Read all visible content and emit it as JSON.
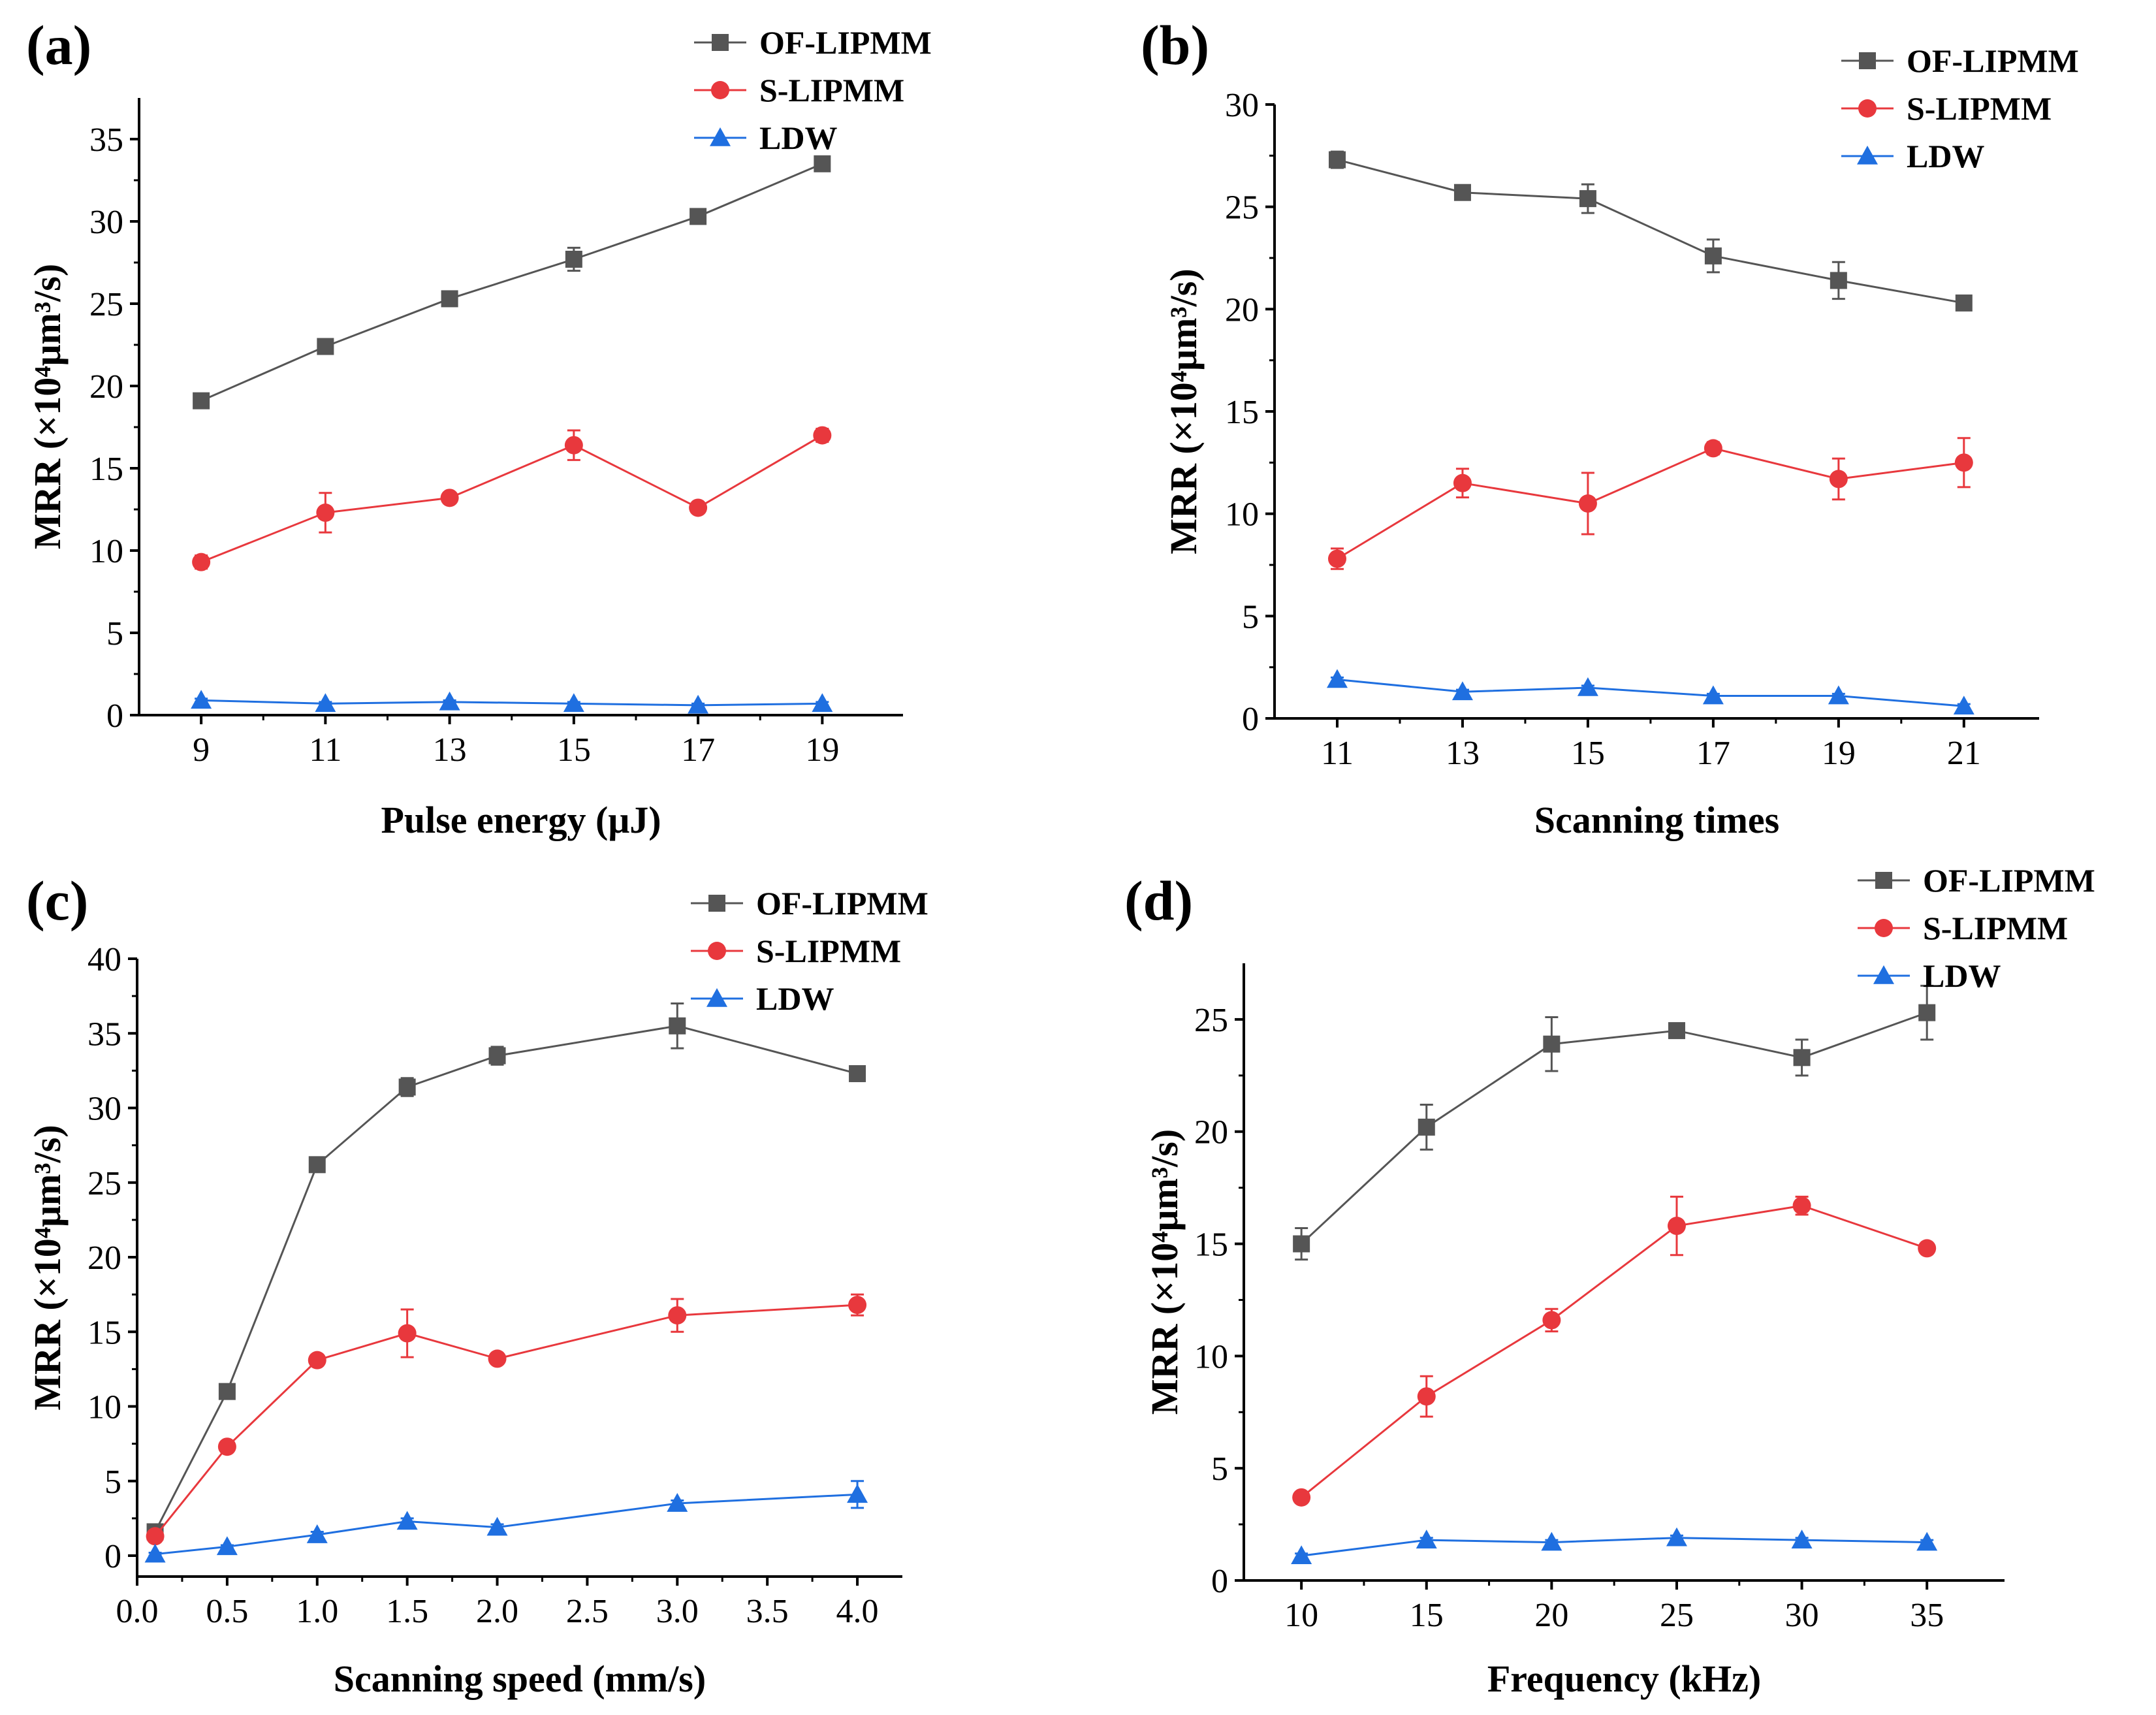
{
  "chart_data": [
    {
      "type": "line",
      "panel_label": "(a)",
      "xlabel": "Pulse energy (μJ)",
      "ylabel": "MRR (×10⁴μm³/s)",
      "x": [
        9,
        11,
        13,
        15,
        17,
        19
      ],
      "xticks": [
        9,
        11,
        13,
        15,
        17,
        19
      ],
      "xlim": [
        8,
        20.3
      ],
      "yticks": [
        0,
        5,
        10,
        15,
        20,
        25,
        30,
        35
      ],
      "ylim": [
        0,
        37.5
      ],
      "legend_position": "top-right",
      "series": [
        {
          "name": "OF-LIPMM",
          "color": "#555555",
          "marker": "square",
          "values": [
            19.1,
            22.4,
            25.3,
            27.7,
            30.3,
            33.5
          ],
          "errors": [
            0.3,
            0.3,
            0.3,
            0.7,
            0.4,
            0.4
          ]
        },
        {
          "name": "S-LIPMM",
          "color": "#e8383d",
          "marker": "circle",
          "values": [
            9.3,
            12.3,
            13.2,
            16.4,
            12.6,
            17.0
          ],
          "errors": [
            0.4,
            1.2,
            0.3,
            0.9,
            0.3,
            0.4
          ]
        },
        {
          "name": "LDW",
          "color": "#1f6fe0",
          "marker": "triangle",
          "values": [
            0.9,
            0.7,
            0.8,
            0.7,
            0.6,
            0.7
          ],
          "errors": [
            0.1,
            0.1,
            0.1,
            0.1,
            0.1,
            0.1
          ]
        }
      ]
    },
    {
      "type": "line",
      "panel_label": "(b)",
      "xlabel": "Scanning times",
      "ylabel": "MRR (×10⁴μm³/s)",
      "x": [
        11,
        13,
        15,
        17,
        19,
        21
      ],
      "xticks": [
        11,
        13,
        15,
        17,
        19,
        21
      ],
      "xlim": [
        10,
        22.2
      ],
      "yticks": [
        0,
        5,
        10,
        15,
        20,
        25,
        30
      ],
      "ylim": [
        0,
        30
      ],
      "legend_position": "top-right",
      "series": [
        {
          "name": "OF-LIPMM",
          "color": "#555555",
          "marker": "square",
          "values": [
            27.3,
            25.7,
            25.4,
            22.6,
            21.4,
            20.3
          ],
          "errors": [
            0.4,
            0.3,
            0.7,
            0.8,
            0.9,
            0.3
          ]
        },
        {
          "name": "S-LIPMM",
          "color": "#e8383d",
          "marker": "circle",
          "values": [
            7.8,
            11.5,
            10.5,
            13.2,
            11.7,
            12.5
          ],
          "errors": [
            0.5,
            0.7,
            1.5,
            0.3,
            1.0,
            1.2
          ]
        },
        {
          "name": "LDW",
          "color": "#1f6fe0",
          "marker": "triangle",
          "values": [
            1.9,
            1.3,
            1.5,
            1.1,
            1.1,
            0.6
          ],
          "errors": [
            0.1,
            0.1,
            0.1,
            0.1,
            0.1,
            0.1
          ]
        }
      ]
    },
    {
      "type": "line",
      "panel_label": "(c)",
      "xlabel": "Scanning speed (mm/s)",
      "ylabel": "MRR (×10⁴μm³/s)",
      "x": [
        0.1,
        0.5,
        1.0,
        1.5,
        2.0,
        3.0,
        4.0
      ],
      "xticks": [
        "0.0",
        "0.5",
        "1.0",
        "1.5",
        "2.0",
        "2.5",
        "3.0",
        "3.5",
        "4.0"
      ],
      "xlim": [
        0,
        4.25
      ],
      "yticks": [
        0,
        5,
        10,
        15,
        20,
        25,
        30,
        35,
        40
      ],
      "ylim": [
        -1.4,
        40
      ],
      "legend_position": "top-right",
      "series": [
        {
          "name": "OF-LIPMM",
          "color": "#555555",
          "marker": "square",
          "values": [
            1.6,
            11.0,
            26.2,
            31.4,
            33.5,
            35.5,
            32.3
          ],
          "errors": [
            0.2,
            0.3,
            0.3,
            0.6,
            0.6,
            1.5,
            0.5
          ]
        },
        {
          "name": "S-LIPMM",
          "color": "#e8383d",
          "marker": "circle",
          "values": [
            1.3,
            7.3,
            13.1,
            14.9,
            13.2,
            16.1,
            16.8
          ],
          "errors": [
            0.2,
            0.3,
            0.3,
            1.6,
            0.3,
            1.1,
            0.7
          ]
        },
        {
          "name": "LDW",
          "color": "#1f6fe0",
          "marker": "triangle",
          "values": [
            0.1,
            0.6,
            1.4,
            2.3,
            1.9,
            3.5,
            4.1
          ],
          "errors": [
            0.1,
            0.1,
            0.2,
            0.2,
            0.2,
            0.2,
            0.9
          ]
        }
      ]
    },
    {
      "type": "line",
      "panel_label": "(d)",
      "xlabel": "Frequency (kHz)",
      "ylabel": "MRR (×10⁴μm³/s)",
      "x": [
        10,
        15,
        20,
        25,
        30,
        35
      ],
      "xticks": [
        10,
        15,
        20,
        25,
        30,
        35
      ],
      "xlim": [
        7.7,
        38.1
      ],
      "yticks": [
        0,
        5,
        10,
        15,
        20,
        25
      ],
      "ylim": [
        0,
        27.5
      ],
      "legend_position": "top-right",
      "series": [
        {
          "name": "OF-LIPMM",
          "color": "#555555",
          "marker": "square",
          "values": [
            15.0,
            20.2,
            23.9,
            24.5,
            23.3,
            25.3
          ],
          "errors": [
            0.7,
            1.0,
            1.2,
            0.3,
            0.8,
            1.2
          ]
        },
        {
          "name": "S-LIPMM",
          "color": "#e8383d",
          "marker": "circle",
          "values": [
            3.7,
            8.2,
            11.6,
            15.8,
            16.7,
            14.8
          ],
          "errors": [
            0.2,
            0.9,
            0.5,
            1.3,
            0.4,
            0.2
          ]
        },
        {
          "name": "LDW",
          "color": "#1f6fe0",
          "marker": "triangle",
          "values": [
            1.1,
            1.8,
            1.7,
            1.9,
            1.8,
            1.7
          ],
          "errors": [
            0.1,
            0.1,
            0.1,
            0.1,
            0.1,
            0.1
          ]
        }
      ]
    }
  ]
}
